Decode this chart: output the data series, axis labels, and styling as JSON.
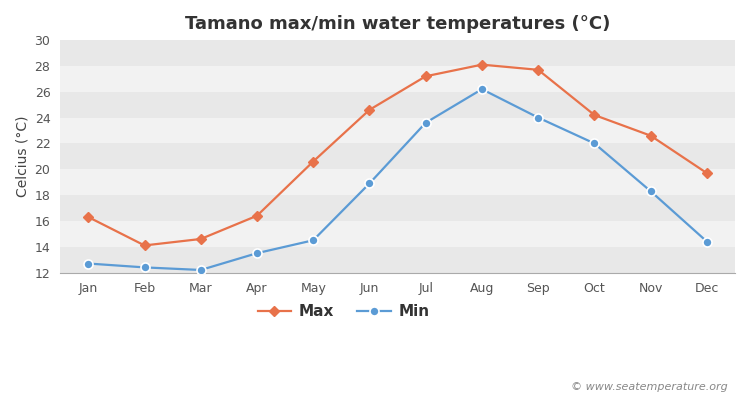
{
  "title": "Tamano max/min water temperatures (°C)",
  "ylabel": "Celcius (°C)",
  "months": [
    "Jan",
    "Feb",
    "Mar",
    "Apr",
    "May",
    "Jun",
    "Jul",
    "Aug",
    "Sep",
    "Oct",
    "Nov",
    "Dec"
  ],
  "max_values": [
    16.3,
    14.1,
    14.6,
    16.4,
    20.6,
    24.6,
    27.2,
    28.1,
    27.7,
    24.2,
    22.6,
    19.7
  ],
  "min_values": [
    12.7,
    12.4,
    12.2,
    13.5,
    14.5,
    18.9,
    23.6,
    26.2,
    24.0,
    22.0,
    18.3,
    14.4
  ],
  "max_color": "#e8724a",
  "min_color": "#5b9bd5",
  "fig_bg_color": "#ffffff",
  "plot_bg_color": "#ffffff",
  "band_color_dark": "#e8e8e8",
  "band_color_light": "#f2f2f2",
  "grid_color": "#ffffff",
  "ylim": [
    12,
    30
  ],
  "yticks": [
    12,
    14,
    16,
    18,
    20,
    22,
    24,
    26,
    28,
    30
  ],
  "watermark": "© www.seatemperature.org",
  "title_fontsize": 13,
  "label_fontsize": 10,
  "tick_fontsize": 9,
  "legend_fontsize": 11
}
